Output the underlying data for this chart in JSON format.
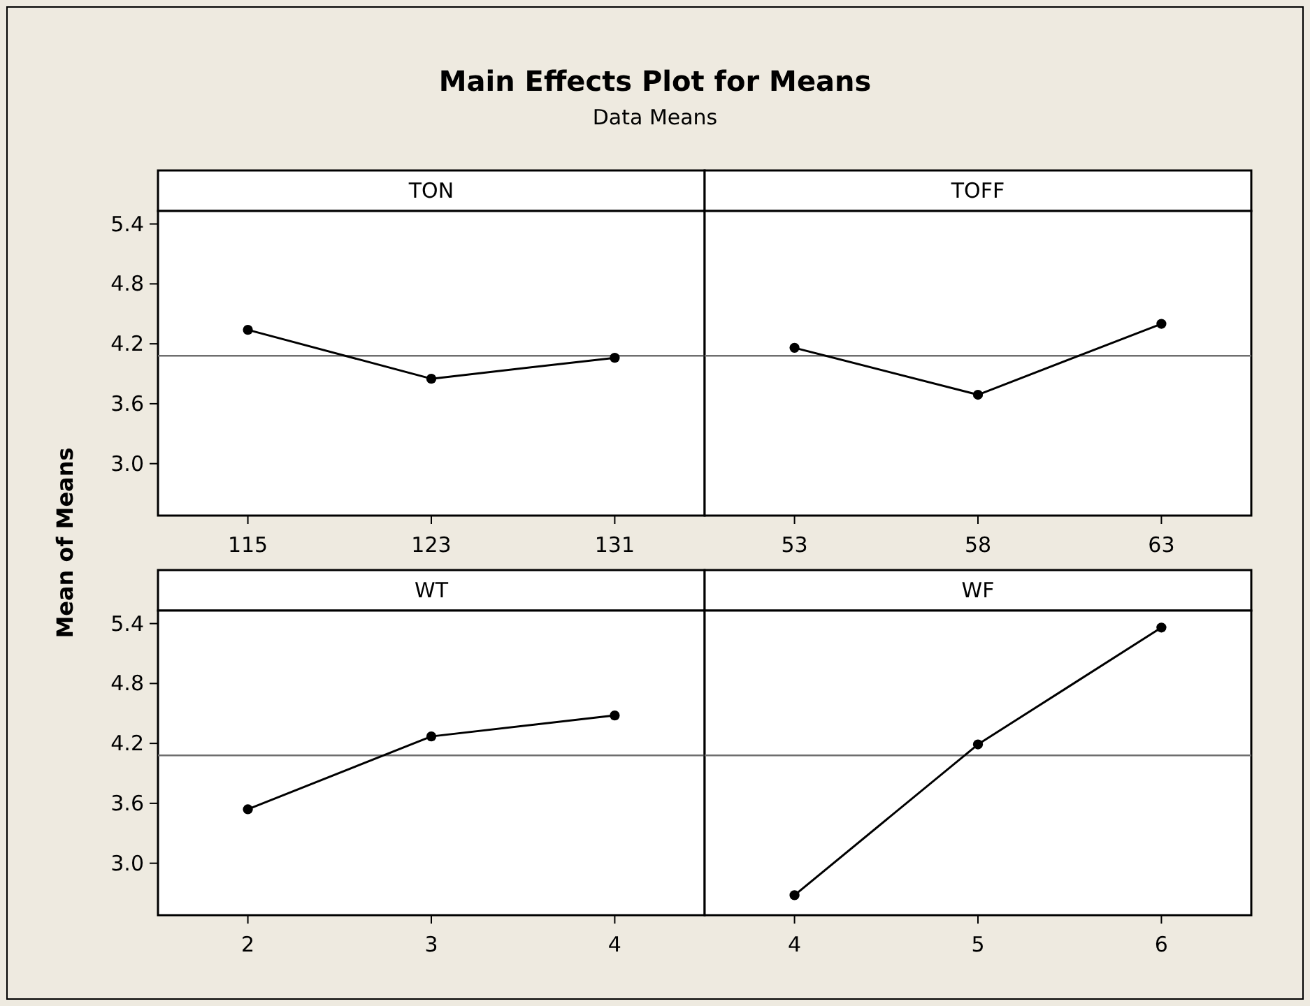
{
  "chart_data": [
    {
      "type": "line",
      "title": "TON",
      "ylabel": "Mean of Means",
      "annotations": [
        "Main Effects Plot for Means",
        "Data Means"
      ],
      "categories": [
        "115",
        "123",
        "131"
      ],
      "series": [
        {
          "color": "#000000",
          "values": [
            4.34,
            3.85,
            4.06
          ]
        }
      ],
      "ylim": [
        2.48,
        5.53
      ],
      "yticks": [
        {
          "value": 3,
          "label": "3.0"
        },
        3.6,
        4.2,
        4.8,
        5.4
      ],
      "ref_lines": [
        {
          "axis": "y",
          "value": 4.08,
          "color": "#6e6e6e"
        }
      ],
      "marker": "circle",
      "grid": false
    },
    {
      "type": "line",
      "title": "TOFF",
      "categories": [
        "53",
        "58",
        "63"
      ],
      "series": [
        {
          "color": "#000000",
          "values": [
            4.16,
            3.69,
            4.4
          ]
        }
      ],
      "ylim": [
        2.48,
        5.53
      ],
      "tick_labels": "x",
      "ref_lines": [
        {
          "axis": "y",
          "value": 4.08,
          "color": "#6e6e6e"
        }
      ],
      "marker": "circle",
      "grid": false
    },
    {
      "type": "line",
      "title": "WT",
      "categories": [
        "2",
        "3",
        "4"
      ],
      "series": [
        {
          "color": "#000000",
          "values": [
            3.54,
            4.27,
            4.48
          ]
        }
      ],
      "ylim": [
        2.48,
        5.53
      ],
      "yticks": [
        {
          "value": 3,
          "label": "3.0"
        },
        3.6,
        4.2,
        4.8,
        5.4
      ],
      "ref_lines": [
        {
          "axis": "y",
          "value": 4.08,
          "color": "#6e6e6e"
        }
      ],
      "marker": "circle",
      "grid": false
    },
    {
      "type": "line",
      "title": "WF",
      "categories": [
        "4",
        "5",
        "6"
      ],
      "series": [
        {
          "color": "#000000",
          "values": [
            2.68,
            4.19,
            5.36
          ]
        }
      ],
      "ylim": [
        2.48,
        5.53
      ],
      "tick_labels": "x",
      "ref_lines": [
        {
          "axis": "y",
          "value": 4.08,
          "color": "#6e6e6e"
        }
      ],
      "marker": "circle",
      "grid": false
    }
  ]
}
